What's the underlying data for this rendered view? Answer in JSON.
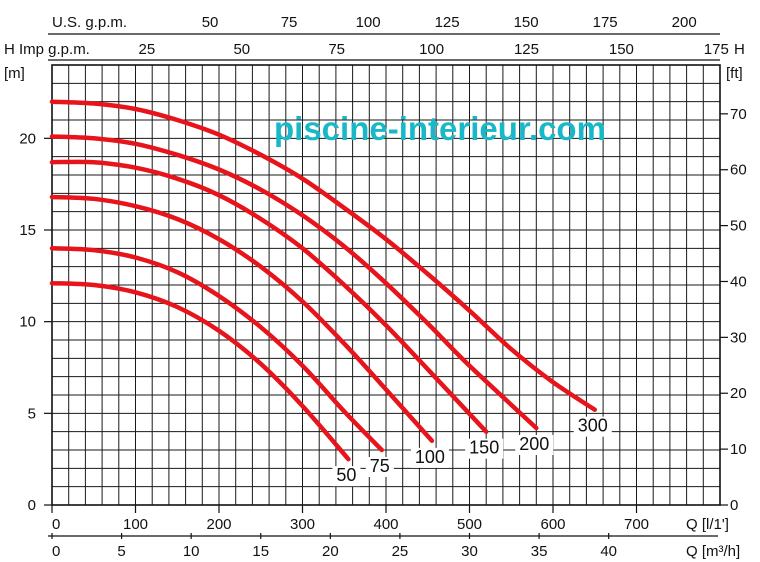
{
  "watermark": "piscine-interieur.com",
  "chart_data": {
    "type": "line",
    "title": "",
    "left_unit": "[m]",
    "right_unit": "[ft]",
    "top_axis1_label": "U.S. g.p.m.",
    "top_axis2_label": "H Imp g.p.m.",
    "top_axis2_end_label": "H",
    "bottom_axis1_label": "Q [l/1']",
    "bottom_axis2_label": "Q [m³/h]",
    "xlim": [
      0,
      800
    ],
    "ylim": [
      0,
      24
    ],
    "grid": true,
    "x_ticks_lpm": [
      "0",
      "100",
      "200",
      "300",
      "400",
      "500",
      "600",
      "700"
    ],
    "x_ticks_m3h": [
      "0",
      "5",
      "10",
      "15",
      "20",
      "25",
      "30",
      "35",
      "40"
    ],
    "y_ticks_m": [
      "0",
      "5",
      "10",
      "15",
      "20"
    ],
    "y_ticks_ft": [
      "0",
      "10",
      "20",
      "30",
      "40",
      "50",
      "60",
      "70"
    ],
    "top_ticks_usgpm": [
      "50",
      "75",
      "100",
      "125",
      "150",
      "175",
      "200"
    ],
    "top_ticks_impgpm": [
      "25",
      "50",
      "75",
      "100",
      "125",
      "150",
      "175"
    ],
    "series_color": "#e8141c",
    "series": [
      {
        "name": "50",
        "label": "50",
        "x": [
          0,
          50,
          100,
          150,
          200,
          250,
          300,
          355
        ],
        "y": [
          12.1,
          12.0,
          11.6,
          10.8,
          9.5,
          7.7,
          5.4,
          2.5
        ]
      },
      {
        "name": "75",
        "label": "75",
        "x": [
          0,
          50,
          100,
          150,
          200,
          250,
          300,
          350,
          395
        ],
        "y": [
          14.0,
          13.9,
          13.5,
          12.7,
          11.4,
          9.7,
          7.6,
          5.1,
          3.0
        ]
      },
      {
        "name": "100",
        "label": "100",
        "x": [
          0,
          50,
          100,
          150,
          200,
          250,
          300,
          350,
          400,
          455
        ],
        "y": [
          16.8,
          16.7,
          16.3,
          15.6,
          14.5,
          13.0,
          11.1,
          8.8,
          6.3,
          3.5
        ]
      },
      {
        "name": "150",
        "label": "150",
        "x": [
          0,
          50,
          100,
          150,
          200,
          250,
          300,
          350,
          400,
          450,
          520
        ],
        "y": [
          18.7,
          18.7,
          18.4,
          17.8,
          16.9,
          15.6,
          14.0,
          12.0,
          9.8,
          7.4,
          4.0
        ]
      },
      {
        "name": "200",
        "label": "200",
        "x": [
          0,
          50,
          100,
          150,
          200,
          250,
          300,
          350,
          400,
          450,
          500,
          580
        ],
        "y": [
          20.1,
          20.0,
          19.7,
          19.1,
          18.3,
          17.2,
          15.8,
          14.1,
          12.1,
          9.9,
          7.6,
          4.2
        ]
      },
      {
        "name": "300",
        "label": "300",
        "x": [
          0,
          50,
          100,
          150,
          200,
          250,
          300,
          350,
          400,
          450,
          500,
          550,
          600,
          650
        ],
        "y": [
          22.0,
          21.9,
          21.6,
          21.0,
          20.2,
          19.1,
          17.8,
          16.2,
          14.5,
          12.6,
          10.6,
          8.5,
          6.7,
          5.2
        ]
      }
    ]
  }
}
